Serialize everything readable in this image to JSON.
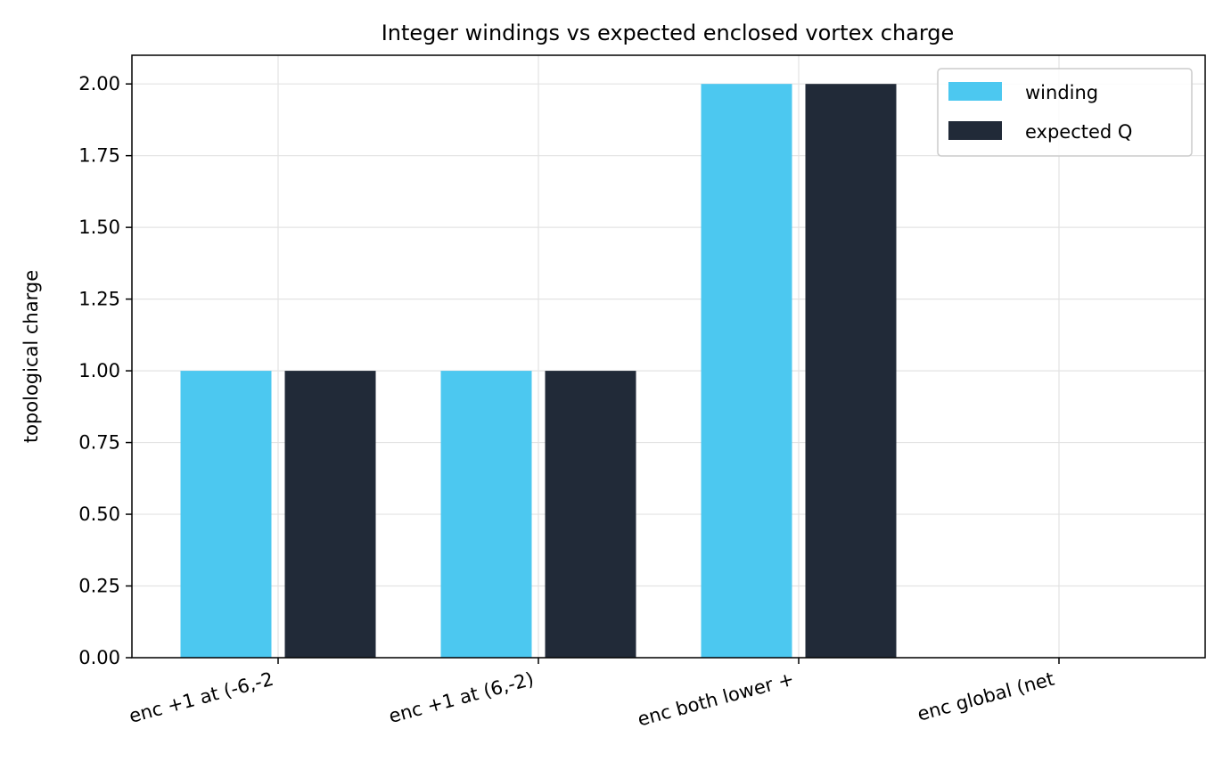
{
  "chart_data": {
    "type": "bar",
    "title": "Integer windings vs expected enclosed vortex charge",
    "xlabel": "",
    "ylabel": "topological charge",
    "categories": [
      "enc +1 at (-6,-2",
      "enc +1 at (6,-2)",
      "enc both lower +",
      "enc global (net"
    ],
    "series": [
      {
        "name": "winding",
        "values": [
          1,
          1,
          2,
          0
        ],
        "color": "#4cc8f0"
      },
      {
        "name": "expected Q",
        "values": [
          1,
          1,
          2,
          0
        ],
        "color": "#212a38"
      }
    ],
    "ylim": [
      0,
      2.1
    ],
    "yticks": [
      "0.00",
      "0.25",
      "0.50",
      "0.75",
      "1.00",
      "1.25",
      "1.50",
      "1.75",
      "2.00"
    ],
    "grid": true,
    "legend_position": "top-right"
  }
}
